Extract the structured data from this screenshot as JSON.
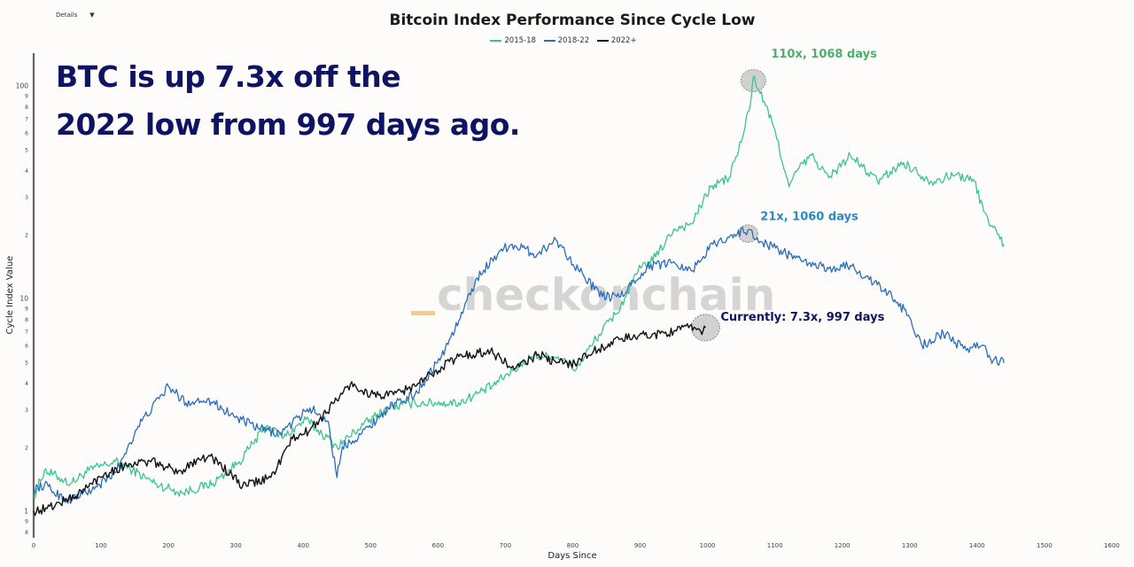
{
  "controls": {
    "details_label": "Details",
    "details_caret": "▼"
  },
  "headline": {
    "line1": "BTC is up 7.3x off the",
    "line2": "2022 low from 997 days ago."
  },
  "watermark": {
    "text": "checkonchain",
    "accent": "#f7c98a"
  },
  "chart_data": {
    "type": "line",
    "title": "Bitcoin Index Performance Since Cycle Low",
    "xlabel": "Days Since",
    "ylabel": "Cycle Index Value",
    "xlim": [
      0,
      1600
    ],
    "ylim": [
      0.78,
      130
    ],
    "yscale": "log",
    "x_ticks": [
      0,
      100,
      200,
      300,
      400,
      500,
      600,
      700,
      800,
      900,
      1000,
      1100,
      1200,
      1300,
      1400,
      1500,
      1600
    ],
    "y_ticks": [
      {
        "v": 0.8,
        "label": "8"
      },
      {
        "v": 0.9,
        "label": "9"
      },
      {
        "v": 1,
        "label": "1"
      },
      {
        "v": 2,
        "label": "2"
      },
      {
        "v": 3,
        "label": "3"
      },
      {
        "v": 4,
        "label": "4"
      },
      {
        "v": 5,
        "label": "5"
      },
      {
        "v": 6,
        "label": "6"
      },
      {
        "v": 7,
        "label": "7"
      },
      {
        "v": 8,
        "label": "8"
      },
      {
        "v": 9,
        "label": "9"
      },
      {
        "v": 10,
        "label": "10"
      },
      {
        "v": 20,
        "label": "2"
      },
      {
        "v": 30,
        "label": "3"
      },
      {
        "v": 40,
        "label": "4"
      },
      {
        "v": 50,
        "label": "5"
      },
      {
        "v": 60,
        "label": "6"
      },
      {
        "v": 70,
        "label": "7"
      },
      {
        "v": 80,
        "label": "8"
      },
      {
        "v": 90,
        "label": "9"
      },
      {
        "v": 100,
        "label": "100"
      }
    ],
    "legend_position": "top-center",
    "series": [
      {
        "name": "2015-18",
        "color": "#3cc48f",
        "x": [
          0,
          16,
          55,
          82,
          121,
          147,
          180,
          220,
          266,
          305,
          345,
          371,
          404,
          450,
          489,
          526,
          566,
          605,
          631,
          680,
          713,
          739,
          778,
          805,
          831,
          871,
          897,
          923,
          950,
          976,
          1005,
          1032,
          1052,
          1065,
          1068,
          1084,
          1101,
          1121,
          1134,
          1154,
          1180,
          1212,
          1252,
          1291,
          1331,
          1370,
          1396,
          1410,
          1430,
          1440
        ],
        "y": [
          1.17,
          1.56,
          1.35,
          1.56,
          1.71,
          1.56,
          1.35,
          1.22,
          1.35,
          1.71,
          2.51,
          2.23,
          2.7,
          2.01,
          2.55,
          3.06,
          3.23,
          3.23,
          3.23,
          3.87,
          4.64,
          5.34,
          5.34,
          4.64,
          6.26,
          9.14,
          13.5,
          15.7,
          21.2,
          22.4,
          33.5,
          37.0,
          57.3,
          88.3,
          110,
          84.6,
          60.0,
          33.5,
          40.5,
          47.1,
          37.0,
          47.1,
          35.6,
          43.6,
          35.6,
          38.3,
          35.6,
          25.6,
          20.1,
          18.0
        ]
      },
      {
        "name": "2018-22",
        "color": "#2a6ebb",
        "x": [
          0,
          16,
          49,
          90,
          121,
          155,
          186,
          200,
          226,
          258,
          297,
          333,
          366,
          410,
          437,
          450,
          458,
          487,
          526,
          566,
          605,
          631,
          658,
          692,
          710,
          747,
          775,
          818,
          844,
          871,
          910,
          950,
          976,
          1008,
          1040,
          1060,
          1078,
          1101,
          1140,
          1180,
          1212,
          1252,
          1278,
          1298,
          1318,
          1350,
          1380,
          1410,
          1420,
          1440
        ],
        "y": [
          1.27,
          1.33,
          1.12,
          1.27,
          1.52,
          2.51,
          3.38,
          3.87,
          3.23,
          3.38,
          2.8,
          2.45,
          2.32,
          3.06,
          2.65,
          1.44,
          2.01,
          2.32,
          3.06,
          3.55,
          5.34,
          7.87,
          12.5,
          16.8,
          18.0,
          16.1,
          18.9,
          12.5,
          10.2,
          10.2,
          14.1,
          14.9,
          13.5,
          18.0,
          20.1,
          21.0,
          18.5,
          17.3,
          14.9,
          13.8,
          14.3,
          11.6,
          9.86,
          8.36,
          6.02,
          6.85,
          5.82,
          6.02,
          5.2,
          4.98
        ]
      },
      {
        "name": "2022+",
        "color": "#111111",
        "x": [
          0,
          20,
          66,
          105,
          142,
          174,
          197,
          213,
          244,
          266,
          310,
          352,
          384,
          410,
          470,
          500,
          526,
          566,
          605,
          631,
          678,
          713,
          749,
          776,
          803,
          831,
          871,
          897,
          930,
          960,
          980,
          990,
          997
        ],
        "y": [
          1.0,
          1.03,
          1.2,
          1.5,
          1.67,
          1.71,
          1.62,
          1.5,
          1.78,
          1.78,
          1.31,
          1.44,
          2.19,
          2.4,
          3.95,
          3.55,
          3.48,
          3.87,
          4.78,
          5.34,
          5.67,
          4.64,
          5.47,
          4.98,
          4.98,
          5.67,
          6.45,
          6.65,
          6.85,
          7.14,
          7.33,
          7.0,
          7.3
        ]
      }
    ],
    "annotations": [
      {
        "text": "110x, 1068 days",
        "x": 1068,
        "y": 110,
        "color": "#4caf6e",
        "series": "2015-18"
      },
      {
        "text": "21x, 1060 days",
        "x": 1060,
        "y": 21,
        "color": "#2a8bbf",
        "series": "2018-22"
      },
      {
        "text": "Currently: 7.3x, 997 days",
        "x": 997,
        "y": 7.3,
        "color": "#0e1462",
        "series": "2022+"
      }
    ]
  }
}
